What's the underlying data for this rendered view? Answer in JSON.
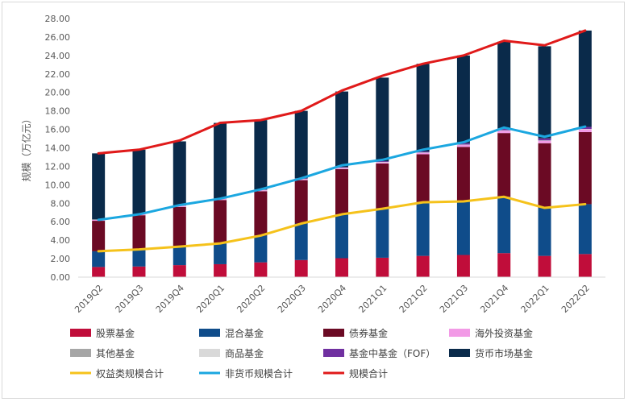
{
  "chart_data": {
    "type": "bar",
    "stacked": true,
    "title": "",
    "xlabel": "",
    "ylabel": "规模（万亿元）",
    "ylim": [
      0,
      28
    ],
    "ytick_step": 2,
    "ytick_format": "0.00",
    "grid": false,
    "legend_position": "bottom",
    "categories": [
      "2019Q2",
      "2019Q3",
      "2019Q4",
      "2020Q1",
      "2020Q2",
      "2020Q3",
      "2020Q4",
      "2021Q1",
      "2021Q2",
      "2021Q3",
      "2021Q4",
      "2022Q1",
      "2022Q2"
    ],
    "bar_series": [
      {
        "name": "股票基金",
        "color": "#c00d3a",
        "values": [
          1.1,
          1.15,
          1.3,
          1.4,
          1.6,
          1.85,
          2.05,
          2.1,
          2.3,
          2.4,
          2.6,
          2.3,
          2.5
        ]
      },
      {
        "name": "混合基金",
        "color": "#0f4c8a",
        "values": [
          1.7,
          1.85,
          2.0,
          2.25,
          2.9,
          3.95,
          4.75,
          5.3,
          5.8,
          5.8,
          6.1,
          5.2,
          5.4
        ]
      },
      {
        "name": "债券基金",
        "color": "#6b0a24",
        "values": [
          3.3,
          3.7,
          4.3,
          4.7,
          4.8,
          4.7,
          4.9,
          4.9,
          5.2,
          5.9,
          6.9,
          7.0,
          7.8
        ]
      },
      {
        "name": "海外投资基金",
        "color": "#f29ae6",
        "values": [
          0.1,
          0.1,
          0.1,
          0.1,
          0.1,
          0.1,
          0.1,
          0.12,
          0.15,
          0.2,
          0.25,
          0.25,
          0.3
        ]
      },
      {
        "name": "其他基金",
        "color": "#a6a6a6",
        "values": [
          0.02,
          0.02,
          0.02,
          0.02,
          0.02,
          0.02,
          0.02,
          0.02,
          0.02,
          0.02,
          0.02,
          0.02,
          0.02
        ]
      },
      {
        "name": "商品基金",
        "color": "#d9d9d9",
        "values": [
          0.02,
          0.02,
          0.03,
          0.03,
          0.03,
          0.03,
          0.03,
          0.03,
          0.03,
          0.03,
          0.03,
          0.03,
          0.03
        ]
      },
      {
        "name": "基金中基金（FOF）",
        "color": "#7030a0",
        "values": [
          0.0,
          0.0,
          0.01,
          0.02,
          0.03,
          0.05,
          0.07,
          0.08,
          0.1,
          0.15,
          0.2,
          0.22,
          0.22
        ]
      },
      {
        "name": "货币市场基金",
        "color": "#0a2a4a",
        "values": [
          7.16,
          6.96,
          6.94,
          8.18,
          7.52,
          7.3,
          8.18,
          9.05,
          9.5,
          9.5,
          9.4,
          9.98,
          10.43
        ]
      }
    ],
    "line_series": [
      {
        "name": "权益类规模合计",
        "color": "#f5c21b",
        "values": [
          2.8,
          3.0,
          3.3,
          3.65,
          4.5,
          5.8,
          6.8,
          7.4,
          8.1,
          8.2,
          8.7,
          7.5,
          7.9
        ]
      },
      {
        "name": "非货币规模合计",
        "color": "#1ba7e0",
        "values": [
          6.2,
          6.8,
          7.8,
          8.5,
          9.5,
          10.7,
          12.1,
          12.7,
          13.8,
          14.6,
          16.2,
          15.2,
          16.3
        ]
      },
      {
        "name": "规模合计",
        "color": "#e01a1a",
        "values": [
          13.4,
          13.8,
          14.8,
          16.7,
          17.0,
          18.0,
          20.2,
          21.8,
          23.1,
          24.0,
          25.6,
          25.1,
          26.7
        ]
      }
    ]
  }
}
